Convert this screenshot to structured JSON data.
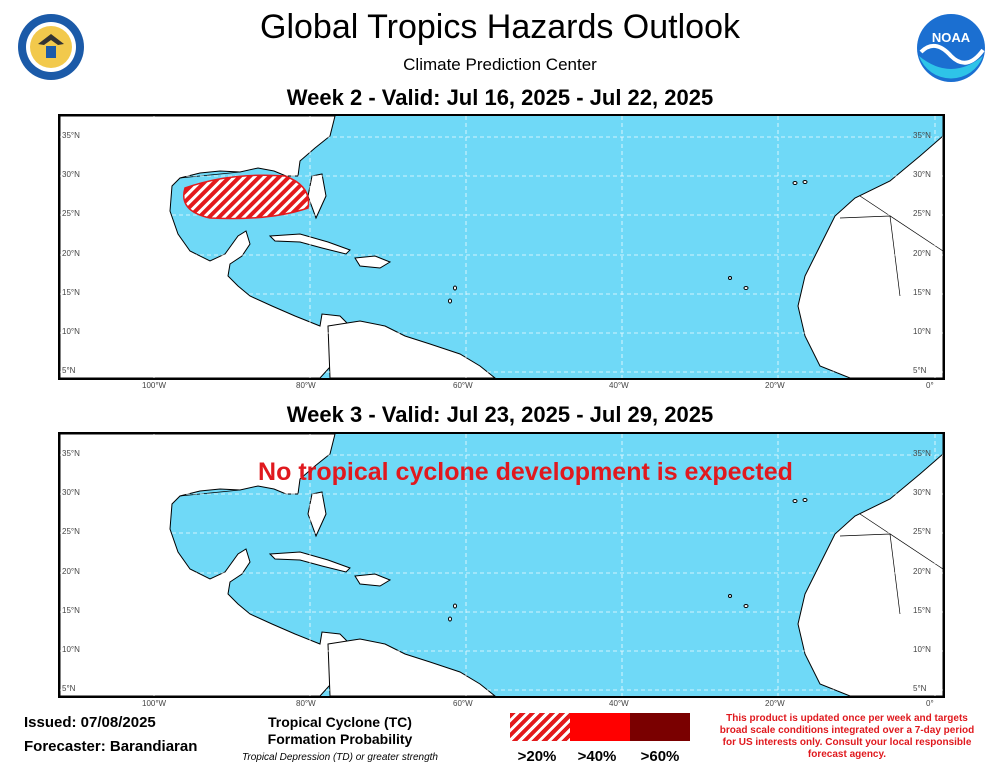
{
  "header": {
    "title": "Global Tropics Hazards Outlook",
    "subtitle": "Climate Prediction Center",
    "left_logo": "department-of-commerce-seal",
    "right_logo": "noaa-logo",
    "right_logo_text": "NOAA"
  },
  "week2": {
    "title": "Week 2 - Valid: Jul 16, 2025 - Jul 22, 2025",
    "hazard_region": "Gulf of America",
    "hazard_category": ">20%"
  },
  "week3": {
    "title": "Week 3 - Valid: Jul 23, 2025 - Jul 29, 2025",
    "message": "No tropical cyclone development is expected"
  },
  "axes": {
    "lat_labels": [
      "35°N",
      "30°N",
      "25°N",
      "20°N",
      "15°N",
      "10°N",
      "5°N"
    ],
    "lon_labels": [
      "100°W",
      "80°W",
      "60°W",
      "40°W",
      "20°W",
      "0°"
    ],
    "lat_range": [
      4,
      38
    ],
    "lon_range": [
      -112,
      1
    ]
  },
  "footer": {
    "issued": "Issued: 07/08/2025",
    "forecaster": "Forecaster: Barandiaran",
    "legend_title_1": "Tropical Cyclone (TC)",
    "legend_title_2": "Formation Probability",
    "legend_note": "Tropical Depression (TD) or greater strength",
    "legend_items": [
      ">20%",
      ">40%",
      ">60%"
    ],
    "disclaimer": "This product is updated once per week and targets broad scale conditions integrated over a 7-day period for US interests only. Consult your local responsible forecast agency."
  },
  "colors": {
    "ocean": "#6fd9f7",
    "land": "#ffffff",
    "hazard": "#e31a1c",
    "low": "#e31a1c",
    "mid": "#ff0000",
    "high": "#7a0000",
    "alert_text": "#e0191e"
  }
}
